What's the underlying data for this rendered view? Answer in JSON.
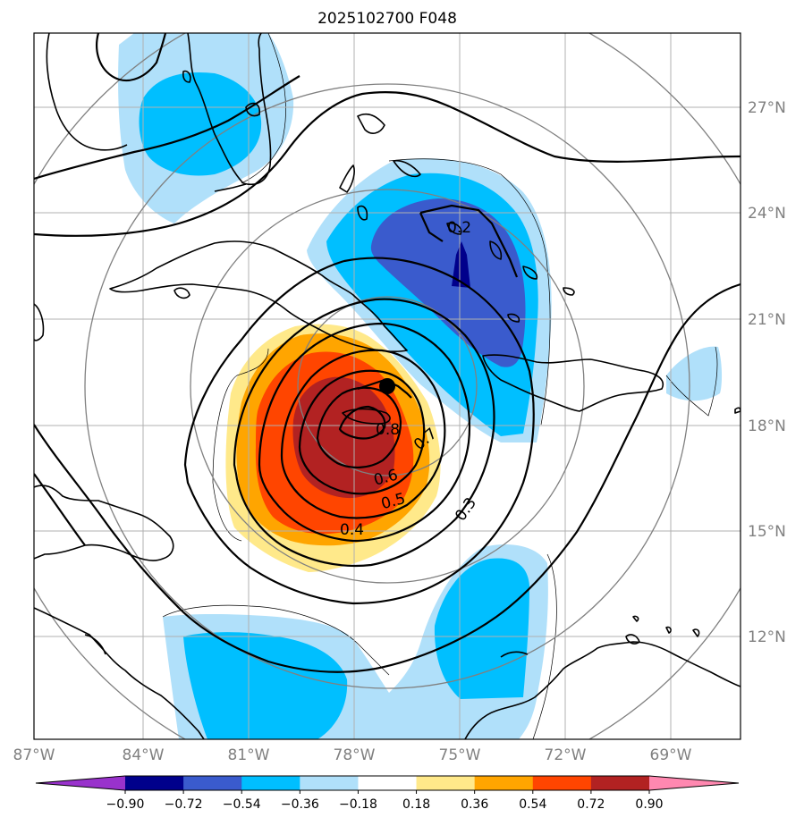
{
  "title": "2025102700 F048",
  "lon_labels": [
    "87°W",
    "84°W",
    "81°W",
    "78°W",
    "75°W",
    "72°W",
    "69°W"
  ],
  "lat_labels": [
    "27°N",
    "24°N",
    "21°N",
    "18°N",
    "15°N",
    "12°N"
  ],
  "contour_labels": [
    "0.2",
    "0.3",
    "0.4",
    "0.5",
    "0.6",
    "0.7",
    "0.8"
  ],
  "colorbar": {
    "ticks": [
      "−0.90",
      "−0.72",
      "−0.54",
      "−0.36",
      "−0.18",
      "0.18",
      "0.36",
      "0.54",
      "0.72",
      "0.90"
    ],
    "colors": [
      "#9932cc",
      "#00008b",
      "#3a5bcd",
      "#00bfff",
      "#b0e0fa",
      "#ffffff",
      "#ffe98a",
      "#ffa500",
      "#ff4500",
      "#b22222",
      "#ff88b0"
    ]
  },
  "colors": {
    "dark_blue": "#00008b",
    "royal_blue": "#3a5bcd",
    "deep_sky": "#00bfff",
    "light_blue": "#b0e0fa",
    "light_yellow": "#ffe98a",
    "orange": "#ffa500",
    "red_orange": "#ff4500",
    "dark_red": "#b22222"
  },
  "marker": "storm-center-marker"
}
